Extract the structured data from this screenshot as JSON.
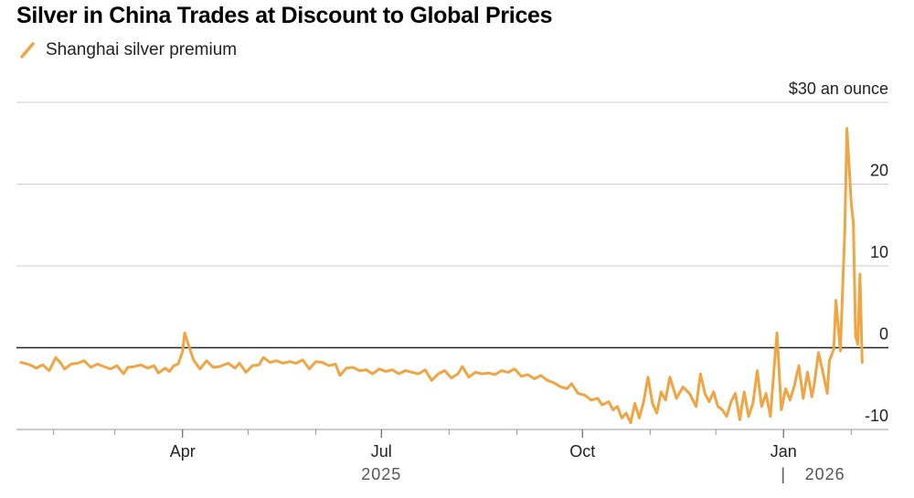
{
  "chart_data": {
    "type": "line",
    "title": "Silver in China Trades at Discount to Global Prices",
    "legend": [
      {
        "name": "Shanghai silver premium",
        "color": "#f0a544"
      }
    ],
    "unit_label": "$30 an ounce",
    "y_ticks": [
      {
        "value": 30,
        "label": "$30 an ounce"
      },
      {
        "value": 20,
        "label": "20"
      },
      {
        "value": 10,
        "label": "10"
      },
      {
        "value": 0,
        "label": "0"
      },
      {
        "value": -10,
        "label": "-10"
      }
    ],
    "ylim": [
      -10,
      30
    ],
    "x_domain": [
      "2025-01-15",
      "2026-02-18"
    ],
    "x_ticks": [
      {
        "date": "2025-04-01",
        "label": "Apr"
      },
      {
        "date": "2025-07-01",
        "label": "Jul"
      },
      {
        "date": "2025-10-01",
        "label": "Oct"
      },
      {
        "date": "2026-01-01",
        "label": "Jan"
      }
    ],
    "minor_ticks": [
      "2025-02-01",
      "2025-03-01",
      "2025-05-01",
      "2025-06-01",
      "2025-08-01",
      "2025-09-01",
      "2025-11-01",
      "2025-12-01",
      "2026-02-01"
    ],
    "year_labels": [
      {
        "date": "2025-07-01",
        "label": "2025"
      },
      {
        "date": "2026-01-20",
        "label": "2026"
      }
    ],
    "year_divider": "2026-01-01",
    "year_divider_label": "|",
    "series": [
      {
        "name": "Shanghai silver premium",
        "color": "#f0a544",
        "points": [
          [
            "2025-01-17",
            -1.8
          ],
          [
            "2025-01-20",
            -2.0
          ],
          [
            "2025-01-22",
            -2.2
          ],
          [
            "2025-01-24",
            -2.5
          ],
          [
            "2025-01-27",
            -2.1
          ],
          [
            "2025-01-30",
            -2.8
          ],
          [
            "2025-02-02",
            -1.2
          ],
          [
            "2025-02-04",
            -1.8
          ],
          [
            "2025-02-06",
            -2.6
          ],
          [
            "2025-02-09",
            -2.0
          ],
          [
            "2025-02-12",
            -1.9
          ],
          [
            "2025-02-15",
            -1.6
          ],
          [
            "2025-02-18",
            -2.4
          ],
          [
            "2025-02-21",
            -2.0
          ],
          [
            "2025-02-24",
            -2.3
          ],
          [
            "2025-02-27",
            -2.6
          ],
          [
            "2025-03-02",
            -2.2
          ],
          [
            "2025-03-05",
            -3.2
          ],
          [
            "2025-03-07",
            -2.4
          ],
          [
            "2025-03-10",
            -2.3
          ],
          [
            "2025-03-13",
            -2.1
          ],
          [
            "2025-03-16",
            -2.5
          ],
          [
            "2025-03-19",
            -2.2
          ],
          [
            "2025-03-21",
            -3.1
          ],
          [
            "2025-03-24",
            -2.5
          ],
          [
            "2025-03-26",
            -2.9
          ],
          [
            "2025-03-28",
            -2.2
          ],
          [
            "2025-03-30",
            -2.0
          ],
          [
            "2025-04-01",
            -0.5
          ],
          [
            "2025-04-02",
            1.8
          ],
          [
            "2025-04-04",
            0.1
          ],
          [
            "2025-04-06",
            -1.5
          ],
          [
            "2025-04-09",
            -2.6
          ],
          [
            "2025-04-12",
            -1.6
          ],
          [
            "2025-04-15",
            -2.4
          ],
          [
            "2025-04-18",
            -2.3
          ],
          [
            "2025-04-22",
            -1.9
          ],
          [
            "2025-04-25",
            -2.5
          ],
          [
            "2025-04-27",
            -1.9
          ],
          [
            "2025-04-30",
            -3.0
          ],
          [
            "2025-05-03",
            -2.2
          ],
          [
            "2025-05-06",
            -2.1
          ],
          [
            "2025-05-08",
            -1.2
          ],
          [
            "2025-05-11",
            -1.8
          ],
          [
            "2025-05-14",
            -1.6
          ],
          [
            "2025-05-17",
            -1.9
          ],
          [
            "2025-05-20",
            -1.7
          ],
          [
            "2025-05-23",
            -1.9
          ],
          [
            "2025-05-26",
            -1.5
          ],
          [
            "2025-05-29",
            -2.6
          ],
          [
            "2025-06-01",
            -1.7
          ],
          [
            "2025-06-04",
            -1.8
          ],
          [
            "2025-06-07",
            -2.2
          ],
          [
            "2025-06-10",
            -2.0
          ],
          [
            "2025-06-12",
            -3.4
          ],
          [
            "2025-06-15",
            -2.5
          ],
          [
            "2025-06-18",
            -2.4
          ],
          [
            "2025-06-21",
            -2.8
          ],
          [
            "2025-06-24",
            -2.7
          ],
          [
            "2025-06-27",
            -3.2
          ],
          [
            "2025-06-30",
            -2.6
          ],
          [
            "2025-07-03",
            -2.9
          ],
          [
            "2025-07-06",
            -2.7
          ],
          [
            "2025-07-09",
            -3.2
          ],
          [
            "2025-07-12",
            -2.8
          ],
          [
            "2025-07-15",
            -3.0
          ],
          [
            "2025-07-18",
            -3.2
          ],
          [
            "2025-07-21",
            -2.7
          ],
          [
            "2025-07-24",
            -4.0
          ],
          [
            "2025-07-27",
            -3.2
          ],
          [
            "2025-07-30",
            -2.8
          ],
          [
            "2025-08-02",
            -3.7
          ],
          [
            "2025-08-05",
            -3.2
          ],
          [
            "2025-08-07",
            -2.3
          ],
          [
            "2025-08-10",
            -3.6
          ],
          [
            "2025-08-13",
            -3.0
          ],
          [
            "2025-08-16",
            -3.2
          ],
          [
            "2025-08-19",
            -3.1
          ],
          [
            "2025-08-22",
            -3.3
          ],
          [
            "2025-08-25",
            -2.8
          ],
          [
            "2025-08-28",
            -3.0
          ],
          [
            "2025-08-31",
            -2.6
          ],
          [
            "2025-09-03",
            -3.5
          ],
          [
            "2025-09-06",
            -3.3
          ],
          [
            "2025-09-09",
            -3.8
          ],
          [
            "2025-09-12",
            -3.4
          ],
          [
            "2025-09-15",
            -4.0
          ],
          [
            "2025-09-18",
            -4.3
          ],
          [
            "2025-09-21",
            -4.8
          ],
          [
            "2025-09-24",
            -5.0
          ],
          [
            "2025-09-26",
            -4.4
          ],
          [
            "2025-09-29",
            -5.6
          ],
          [
            "2025-10-02",
            -5.8
          ],
          [
            "2025-10-05",
            -6.4
          ],
          [
            "2025-10-08",
            -6.2
          ],
          [
            "2025-10-10",
            -7.0
          ],
          [
            "2025-10-13",
            -6.6
          ],
          [
            "2025-10-15",
            -7.6
          ],
          [
            "2025-10-17",
            -7.2
          ],
          [
            "2025-10-19",
            -8.6
          ],
          [
            "2025-10-21",
            -8.0
          ],
          [
            "2025-10-23",
            -9.2
          ],
          [
            "2025-10-25",
            -6.8
          ],
          [
            "2025-10-27",
            -8.6
          ],
          [
            "2025-10-29",
            -6.6
          ],
          [
            "2025-10-31",
            -3.6
          ],
          [
            "2025-11-02",
            -6.8
          ],
          [
            "2025-11-04",
            -8.0
          ],
          [
            "2025-11-06",
            -5.4
          ],
          [
            "2025-11-08",
            -6.4
          ],
          [
            "2025-11-10",
            -3.6
          ],
          [
            "2025-11-13",
            -6.2
          ],
          [
            "2025-11-16",
            -4.8
          ],
          [
            "2025-11-19",
            -5.6
          ],
          [
            "2025-11-22",
            -7.2
          ],
          [
            "2025-11-24",
            -3.2
          ],
          [
            "2025-11-26",
            -5.6
          ],
          [
            "2025-11-28",
            -6.6
          ],
          [
            "2025-11-30",
            -5.4
          ],
          [
            "2025-12-02",
            -7.2
          ],
          [
            "2025-12-04",
            -7.6
          ],
          [
            "2025-12-06",
            -8.4
          ],
          [
            "2025-12-08",
            -6.6
          ],
          [
            "2025-12-10",
            -5.6
          ],
          [
            "2025-12-12",
            -8.8
          ],
          [
            "2025-12-14",
            -5.4
          ],
          [
            "2025-12-16",
            -8.4
          ],
          [
            "2025-12-18",
            -6.8
          ],
          [
            "2025-12-20",
            -2.8
          ],
          [
            "2025-12-22",
            -7.2
          ],
          [
            "2025-12-24",
            -5.6
          ],
          [
            "2025-12-26",
            -8.4
          ],
          [
            "2025-12-28",
            -1.4
          ],
          [
            "2025-12-29",
            1.8
          ],
          [
            "2025-12-31",
            -7.6
          ],
          [
            "2026-01-02",
            -5.0
          ],
          [
            "2026-01-04",
            -6.4
          ],
          [
            "2026-01-06",
            -4.6
          ],
          [
            "2026-01-08",
            -2.2
          ],
          [
            "2026-01-10",
            -6.2
          ],
          [
            "2026-01-12",
            -3.0
          ],
          [
            "2026-01-14",
            -6.0
          ],
          [
            "2026-01-15",
            -4.6
          ],
          [
            "2026-01-17",
            -0.6
          ],
          [
            "2026-01-19",
            -3.0
          ],
          [
            "2026-01-21",
            -5.6
          ],
          [
            "2026-01-22",
            -1.6
          ],
          [
            "2026-01-24",
            -0.2
          ],
          [
            "2026-01-25",
            5.8
          ],
          [
            "2026-01-27",
            -0.4
          ],
          [
            "2026-01-29",
            14.0
          ],
          [
            "2026-01-30",
            26.8
          ],
          [
            "2026-02-01",
            17.6
          ],
          [
            "2026-02-02",
            15.2
          ],
          [
            "2026-02-03",
            1.4
          ],
          [
            "2026-02-04",
            0.4
          ],
          [
            "2026-02-05",
            9.0
          ],
          [
            "2026-02-06",
            -1.8
          ]
        ]
      }
    ]
  }
}
